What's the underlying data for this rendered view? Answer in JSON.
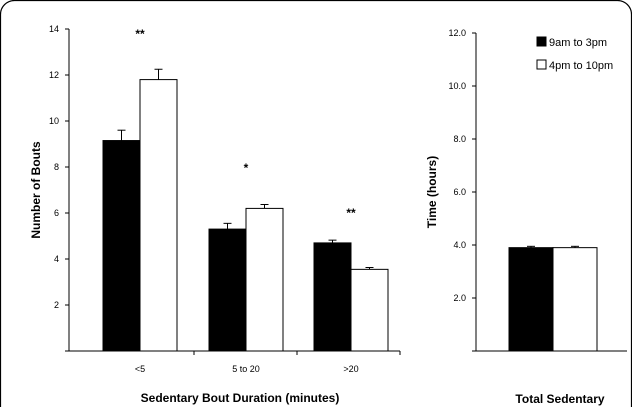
{
  "chart_data": [
    {
      "type": "bar",
      "categories": [
        "<5",
        "5 to 20",
        ">20"
      ],
      "series": [
        {
          "name": "9am to 3pm",
          "color": "#000000",
          "values": [
            9.15,
            5.3,
            4.7
          ],
          "errors": [
            0.45,
            0.25,
            0.12
          ]
        },
        {
          "name": "4pm to 10pm",
          "color": "#ffffff",
          "values": [
            11.8,
            6.2,
            3.55
          ],
          "errors": [
            0.45,
            0.17,
            0.08
          ]
        }
      ],
      "significance": [
        "**",
        "*",
        "**"
      ],
      "xlabel": "Sedentary Bout Duration (minutes)",
      "ylabel": "Number of Bouts",
      "ylim": [
        0,
        14
      ],
      "yticks": [
        "2",
        "4",
        "6",
        "8",
        "10",
        "12",
        "14"
      ],
      "grid": false
    },
    {
      "type": "bar",
      "categories": [
        ""
      ],
      "series": [
        {
          "name": "9am to 3pm",
          "color": "#000000",
          "values": [
            3.9
          ],
          "errors": [
            0.05
          ]
        },
        {
          "name": "4pm to 10pm",
          "color": "#ffffff",
          "values": [
            3.9
          ],
          "errors": [
            0.05
          ]
        }
      ],
      "xlabel": "Total Sedentary",
      "ylabel": "Time (hours)",
      "ylim": [
        0,
        12
      ],
      "yticks": [
        "2.0",
        "4.0",
        "6.0",
        "8.0",
        "10.0",
        "12.0"
      ],
      "legend_position": "top-right",
      "grid": false
    }
  ]
}
